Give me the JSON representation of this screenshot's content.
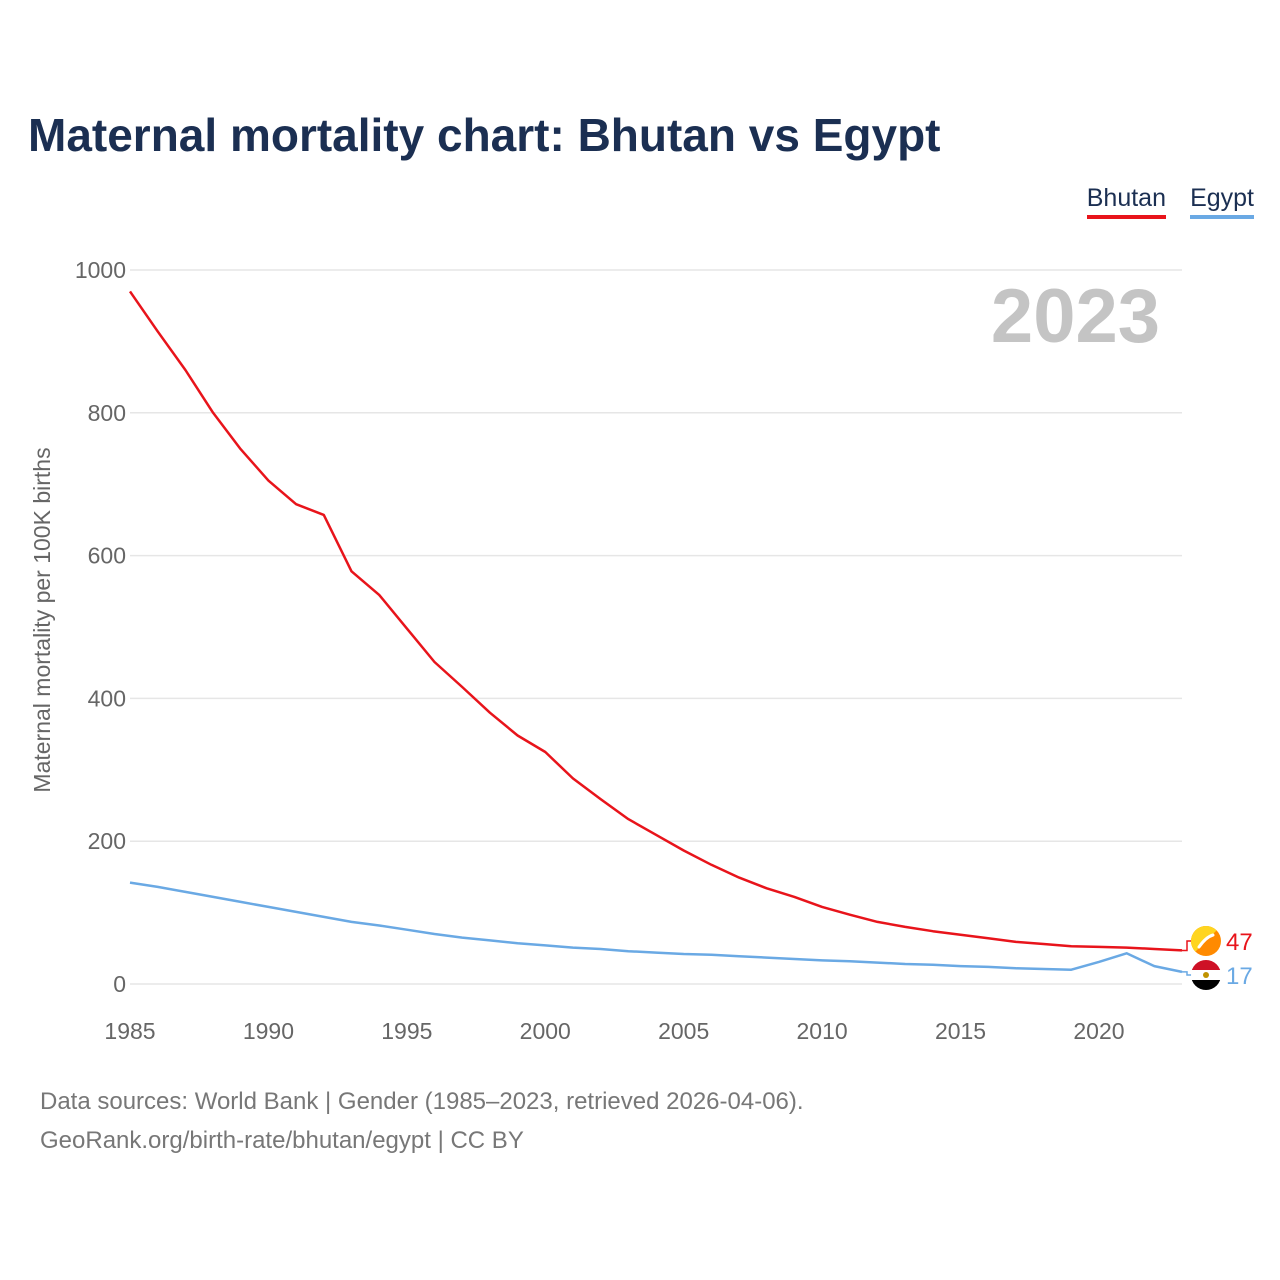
{
  "title": "Maternal mortality chart: Bhutan vs Egypt",
  "legend": [
    {
      "name": "Bhutan",
      "color": "#e8141b"
    },
    {
      "name": "Egypt",
      "color": "#6aa9e4"
    }
  ],
  "footer": {
    "source": "Data sources: World Bank | Gender (1985–2023, retrieved 2026-04-06).",
    "link": "GeoRank.org/birth-rate/bhutan/egypt | CC BY"
  },
  "chart_data": {
    "type": "line",
    "title": "Maternal mortality chart: Bhutan vs Egypt",
    "xlabel": "",
    "ylabel": "Maternal mortality per 100K births",
    "year_label": "2023",
    "xlim": [
      1985,
      2023
    ],
    "ylim": [
      0,
      1000
    ],
    "x_ticks": [
      1985,
      1990,
      1995,
      2000,
      2005,
      2010,
      2015,
      2020
    ],
    "y_ticks": [
      0,
      200,
      400,
      600,
      800,
      1000
    ],
    "grid": true,
    "legend_position": "top-right",
    "x": [
      1985,
      1986,
      1987,
      1988,
      1989,
      1990,
      1991,
      1992,
      1993,
      1994,
      1995,
      1996,
      1997,
      1998,
      1999,
      2000,
      2001,
      2002,
      2003,
      2004,
      2005,
      2006,
      2007,
      2008,
      2009,
      2010,
      2011,
      2012,
      2013,
      2014,
      2015,
      2016,
      2017,
      2018,
      2019,
      2020,
      2021,
      2022,
      2023
    ],
    "series": [
      {
        "name": "Bhutan",
        "color": "#e8141b",
        "end_label": "47",
        "values": [
          970,
          914,
          860,
          800,
          749,
          705,
          672,
          657,
          578,
          545,
          498,
          451,
          416,
          380,
          348,
          325,
          288,
          259,
          231,
          209,
          187,
          167,
          149,
          134,
          122,
          108,
          97,
          87,
          80,
          74,
          69,
          64,
          59,
          56,
          53,
          52,
          51,
          49,
          47
        ]
      },
      {
        "name": "Egypt",
        "color": "#6aa9e4",
        "end_label": "17",
        "values": [
          142,
          136,
          129,
          122,
          115,
          108,
          101,
          94,
          87,
          82,
          76,
          70,
          65,
          61,
          57,
          54,
          51,
          49,
          46,
          44,
          42,
          41,
          39,
          37,
          35,
          33,
          32,
          30,
          28,
          27,
          25,
          24,
          22,
          21,
          20,
          31,
          43,
          25,
          17
        ]
      }
    ]
  }
}
